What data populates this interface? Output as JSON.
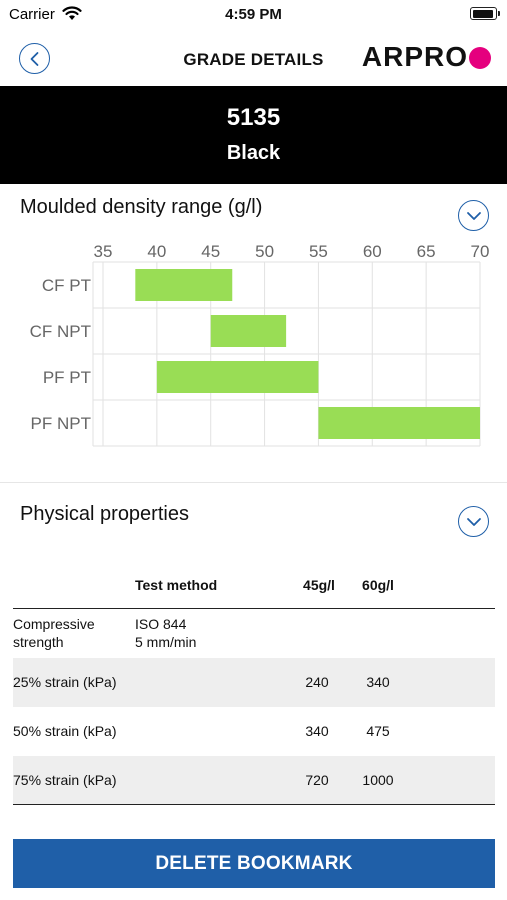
{
  "status_bar": {
    "carrier": "Carrier",
    "time": "4:59 PM",
    "wifi_icon": "wifi-icon",
    "battery_icon": "battery-icon"
  },
  "nav": {
    "title": "GRADE DETAILS",
    "brand": "ARPRO",
    "brand_dot_color": "#e5007e",
    "back_icon": "chevron-left-icon"
  },
  "grade": {
    "code": "5135",
    "color_name": "Black"
  },
  "density_section": {
    "title": "Moulded density range (g/l)",
    "toggle_icon": "chevron-down-icon"
  },
  "chart_data": {
    "type": "bar",
    "orientation": "horizontal-range",
    "title": "Moulded density range (g/l)",
    "categories": [
      "CF PT",
      "CF NPT",
      "PF PT",
      "PF NPT"
    ],
    "ranges": [
      [
        38,
        47
      ],
      [
        45,
        52
      ],
      [
        40,
        55
      ],
      [
        55,
        70
      ]
    ],
    "x_ticks": [
      35,
      40,
      45,
      50,
      55,
      60,
      65,
      70
    ],
    "xlim": [
      35,
      70
    ],
    "bar_color": "#99dd55",
    "grid": true,
    "x_axis_position": "top"
  },
  "properties_section": {
    "title": "Physical properties",
    "toggle_icon": "chevron-down-icon",
    "headers": [
      "",
      "Test method",
      "45g/l",
      "60g/l"
    ],
    "rows": [
      {
        "property": "Compressive\nstrength",
        "method": "ISO 844\n5 mm/min",
        "v45": "",
        "v60": ""
      },
      {
        "property": "25% strain (kPa)",
        "method": "",
        "v45": "240",
        "v60": "340"
      },
      {
        "property": "50% strain (kPa)",
        "method": "",
        "v45": "340",
        "v60": "475"
      },
      {
        "property": "75% strain (kPa)",
        "method": "",
        "v45": "720",
        "v60": "1000"
      }
    ]
  },
  "delete_button": {
    "label": "DELETE BOOKMARK",
    "color": "#1f5fa8"
  }
}
